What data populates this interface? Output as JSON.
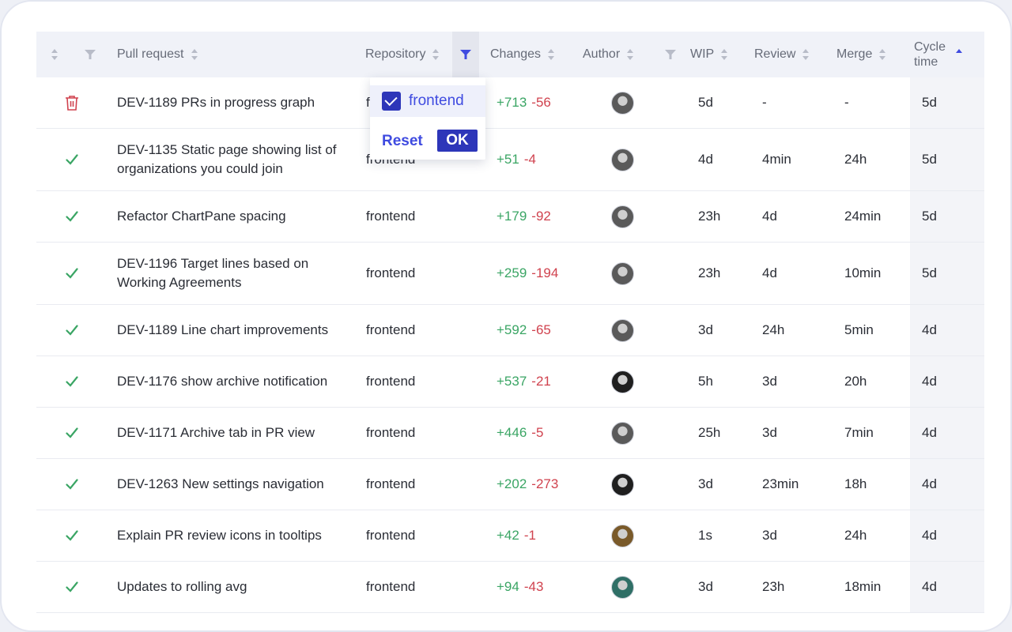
{
  "header": {
    "pull_request": "Pull request",
    "repository": "Repository",
    "changes": "Changes",
    "author": "Author",
    "wip": "WIP",
    "review": "Review",
    "merge": "Merge",
    "cycle_line1": "Cycle",
    "cycle_line2": "time"
  },
  "filter_dropdown": {
    "option_label": "frontend",
    "option_checked": true,
    "reset_label": "Reset",
    "ok_label": "OK"
  },
  "rows": [
    {
      "status": "trash-icon",
      "title": "DEV-1189 PRs in progress graph",
      "repo": "f",
      "plus": "+713",
      "minus": "-56",
      "avatar": "#5a5a5a",
      "wip": "5d",
      "review": "-",
      "merge": "-",
      "cycle": "5d"
    },
    {
      "status": "check-icon",
      "title": "DEV-1135 Static page showing list of organizations you could join",
      "repo": "frontend",
      "plus": "+51",
      "minus": "-4",
      "avatar": "#5a5a5a",
      "wip": "4d",
      "review": "4min",
      "merge": "24h",
      "cycle": "5d"
    },
    {
      "status": "check-icon",
      "title": "Refactor ChartPane spacing",
      "repo": "frontend",
      "plus": "+179",
      "minus": "-92",
      "avatar": "#5a5a5a",
      "wip": "23h",
      "review": "4d",
      "merge": "24min",
      "cycle": "5d"
    },
    {
      "status": "check-icon",
      "title": "DEV-1196 Target lines based on Working Agreements",
      "repo": "frontend",
      "plus": "+259",
      "minus": "-194",
      "avatar": "#5a5a5a",
      "wip": "23h",
      "review": "4d",
      "merge": "10min",
      "cycle": "5d"
    },
    {
      "status": "check-icon",
      "title": "DEV-1189 Line chart improvements",
      "repo": "frontend",
      "plus": "+592",
      "minus": "-65",
      "avatar": "#5a5a5a",
      "wip": "3d",
      "review": "24h",
      "merge": "5min",
      "cycle": "4d"
    },
    {
      "status": "check-icon",
      "title": "DEV-1176 show archive notification",
      "repo": "frontend",
      "plus": "+537",
      "minus": "-21",
      "avatar": "#1f1f1f",
      "wip": "5h",
      "review": "3d",
      "merge": "20h",
      "cycle": "4d"
    },
    {
      "status": "check-icon",
      "title": "DEV-1171 Archive tab in PR view",
      "repo": "frontend",
      "plus": "+446",
      "minus": "-5",
      "avatar": "#5a5a5a",
      "wip": "25h",
      "review": "3d",
      "merge": "7min",
      "cycle": "4d"
    },
    {
      "status": "check-icon",
      "title": "DEV-1263 New settings navigation",
      "repo": "frontend",
      "plus": "+202",
      "minus": "-273",
      "avatar": "#1f1f1f",
      "wip": "3d",
      "review": "23min",
      "merge": "18h",
      "cycle": "4d"
    },
    {
      "status": "check-icon",
      "title": "Explain PR review icons in tooltips",
      "repo": "frontend",
      "plus": "+42",
      "minus": "-1",
      "avatar": "#7a5a2a",
      "wip": "1s",
      "review": "3d",
      "merge": "24h",
      "cycle": "4d"
    },
    {
      "status": "check-icon",
      "title": "Updates to rolling avg",
      "repo": "frontend",
      "plus": "+94",
      "minus": "-43",
      "avatar": "#2f6f66",
      "wip": "3d",
      "review": "23h",
      "merge": "18min",
      "cycle": "4d"
    }
  ]
}
